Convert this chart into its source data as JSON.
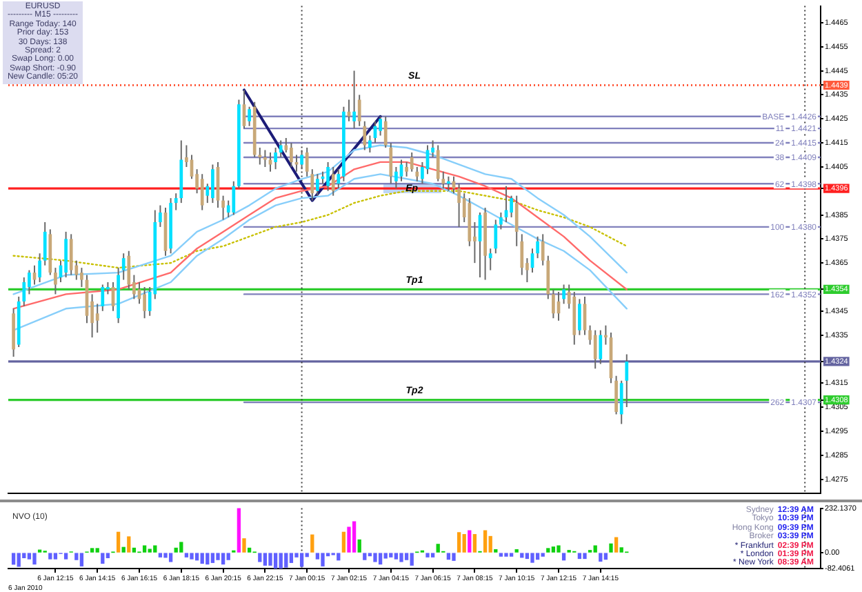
{
  "chart_data": [
    {
      "type": "candlestick",
      "x": [
        "2010-01-06T10:15",
        "2010-01-06T10:30",
        "2010-01-06T10:45",
        "2010-01-06T11:00",
        "2010-01-06T11:15",
        "2010-01-06T11:30",
        "2010-01-06T11:45",
        "2010-01-06T12:00",
        "2010-01-06T12:15",
        "2010-01-06T12:30",
        "2010-01-06T12:45",
        "2010-01-06T13:00",
        "2010-01-06T13:15",
        "2010-01-06T13:30",
        "2010-01-06T13:45",
        "2010-01-06T14:00",
        "2010-01-06T14:15",
        "2010-01-06T14:30",
        "2010-01-06T14:45",
        "2010-01-06T15:00",
        "2010-01-06T15:15",
        "2010-01-06T15:30",
        "2010-01-06T15:45",
        "2010-01-06T16:00",
        "2010-01-06T16:15",
        "2010-01-06T16:30",
        "2010-01-06T16:45",
        "2010-01-06T17:00",
        "2010-01-06T17:15",
        "2010-01-06T17:30",
        "2010-01-06T17:45",
        "2010-01-06T18:00",
        "2010-01-06T18:15",
        "2010-01-06T18:30",
        "2010-01-06T18:45",
        "2010-01-06T19:00",
        "2010-01-06T19:15",
        "2010-01-06T19:30",
        "2010-01-06T19:45",
        "2010-01-06T20:00",
        "2010-01-06T20:15",
        "2010-01-06T20:30",
        "2010-01-06T20:45",
        "2010-01-06T21:00",
        "2010-01-06T21:15",
        "2010-01-06T21:30",
        "2010-01-06T21:45",
        "2010-01-06T22:00",
        "2010-01-06T22:15",
        "2010-01-06T22:30",
        "2010-01-06T22:45",
        "2010-01-06T23:00",
        "2010-01-06T23:15",
        "2010-01-06T23:30",
        "2010-01-06T23:45",
        "2010-01-07T00:00",
        "2010-01-07T00:15",
        "2010-01-07T00:30",
        "2010-01-07T00:45",
        "2010-01-07T01:00",
        "2010-01-07T01:15",
        "2010-01-07T01:30",
        "2010-01-07T01:45",
        "2010-01-07T02:00",
        "2010-01-07T02:15",
        "2010-01-07T02:30",
        "2010-01-07T02:45",
        "2010-01-07T03:00",
        "2010-01-07T03:15",
        "2010-01-07T03:30",
        "2010-01-07T03:45",
        "2010-01-07T04:00",
        "2010-01-07T04:15",
        "2010-01-07T04:30",
        "2010-01-07T04:45",
        "2010-01-07T05:00",
        "2010-01-07T05:15",
        "2010-01-07T05:30",
        "2010-01-07T05:45",
        "2010-01-07T06:00",
        "2010-01-07T06:15",
        "2010-01-07T06:30",
        "2010-01-07T06:45",
        "2010-01-07T07:00",
        "2010-01-07T07:15",
        "2010-01-07T07:30",
        "2010-01-07T07:45",
        "2010-01-07T08:00",
        "2010-01-07T08:15",
        "2010-01-07T08:30",
        "2010-01-07T08:45",
        "2010-01-07T09:00",
        "2010-01-07T09:15",
        "2010-01-07T09:30",
        "2010-01-07T09:45",
        "2010-01-07T10:00",
        "2010-01-07T10:15",
        "2010-01-07T10:30",
        "2010-01-07T10:45",
        "2010-01-07T11:00",
        "2010-01-07T11:15",
        "2010-01-07T11:30",
        "2010-01-07T11:45",
        "2010-01-07T12:00",
        "2010-01-07T12:15",
        "2010-01-07T12:30",
        "2010-01-07T12:45",
        "2010-01-07T13:00",
        "2010-01-07T13:15",
        "2010-01-07T13:30",
        "2010-01-07T13:45",
        "2010-01-07T14:00",
        "2010-01-07T14:15",
        "2010-01-07T14:30",
        "2010-01-07T14:45",
        "2010-01-07T15:00",
        "2010-01-07T15:15",
        "2010-01-07T15:30"
      ],
      "ohlc": [
        [
          1.4344,
          1.4346,
          1.4326,
          1.4329
        ],
        [
          1.4331,
          1.4351,
          1.433,
          1.4349
        ],
        [
          1.4349,
          1.4359,
          1.4347,
          1.4357
        ],
        [
          1.4355,
          1.4362,
          1.4352,
          1.4361
        ],
        [
          1.4361,
          1.4364,
          1.4356,
          1.4358
        ],
        [
          1.4359,
          1.4369,
          1.4357,
          1.4366
        ],
        [
          1.4366,
          1.4382,
          1.4364,
          1.4378
        ],
        [
          1.4377,
          1.4379,
          1.436,
          1.4361
        ],
        [
          1.4361,
          1.4363,
          1.4352,
          1.4356
        ],
        [
          1.4359,
          1.4366,
          1.4357,
          1.4364
        ],
        [
          1.4361,
          1.4378,
          1.4359,
          1.4375
        ],
        [
          1.4375,
          1.4377,
          1.436,
          1.4362
        ],
        [
          1.4364,
          1.4366,
          1.4358,
          1.436
        ],
        [
          1.4361,
          1.4363,
          1.4355,
          1.4358
        ],
        [
          1.4358,
          1.436,
          1.434,
          1.4343
        ],
        [
          1.4349,
          1.4352,
          1.4334,
          1.434
        ],
        [
          1.4344,
          1.4348,
          1.4336,
          1.4341
        ],
        [
          1.4347,
          1.4356,
          1.4345,
          1.4355
        ],
        [
          1.4354,
          1.4357,
          1.4352,
          1.4355
        ],
        [
          1.4355,
          1.4357,
          1.4345,
          1.4347
        ],
        [
          1.4342,
          1.4363,
          1.434,
          1.436
        ],
        [
          1.4362,
          1.4369,
          1.4358,
          1.4367
        ],
        [
          1.4368,
          1.437,
          1.4354,
          1.4356
        ],
        [
          1.4357,
          1.436,
          1.435,
          1.4352
        ],
        [
          1.4354,
          1.4357,
          1.4348,
          1.435
        ],
        [
          1.4352,
          1.4355,
          1.4342,
          1.4345
        ],
        [
          1.4345,
          1.4355,
          1.4343,
          1.4353
        ],
        [
          1.4352,
          1.4387,
          1.435,
          1.4382
        ],
        [
          1.4382,
          1.4389,
          1.438,
          1.4386
        ],
        [
          1.4386,
          1.4388,
          1.4368,
          1.437
        ],
        [
          1.4371,
          1.4392,
          1.4369,
          1.439
        ],
        [
          1.439,
          1.4394,
          1.4387,
          1.4392
        ],
        [
          1.4392,
          1.4416,
          1.439,
          1.4408
        ],
        [
          1.4409,
          1.4414,
          1.4405,
          1.4407
        ],
        [
          1.4408,
          1.441,
          1.44,
          1.4401
        ],
        [
          1.4402,
          1.4404,
          1.4394,
          1.4396
        ],
        [
          1.44,
          1.4402,
          1.4387,
          1.4389
        ],
        [
          1.4393,
          1.4398,
          1.439,
          1.4397
        ],
        [
          1.4392,
          1.4406,
          1.439,
          1.4404
        ],
        [
          1.4405,
          1.4407,
          1.4388,
          1.4391
        ],
        [
          1.4391,
          1.4393,
          1.4383,
          1.4388
        ],
        [
          1.4386,
          1.4391,
          1.4384,
          1.4389
        ],
        [
          1.4386,
          1.4399,
          1.4385,
          1.4397
        ],
        [
          1.4397,
          1.4433,
          1.4396,
          1.4431
        ],
        [
          1.4431,
          1.4437,
          1.4421,
          1.4422
        ],
        [
          1.4424,
          1.443,
          1.4422,
          1.4429
        ],
        [
          1.443,
          1.4432,
          1.4409,
          1.441
        ],
        [
          1.441,
          1.4413,
          1.4406,
          1.4409
        ],
        [
          1.4409,
          1.4412,
          1.4405,
          1.4408
        ],
        [
          1.4408,
          1.4411,
          1.4403,
          1.4406
        ],
        [
          1.4407,
          1.4413,
          1.4404,
          1.4411
        ],
        [
          1.4411,
          1.4416,
          1.4409,
          1.4414
        ],
        [
          1.4414,
          1.4417,
          1.4411,
          1.4412
        ],
        [
          1.4413,
          1.4415,
          1.4405,
          1.4407
        ],
        [
          1.4407,
          1.441,
          1.4403,
          1.4406
        ],
        [
          1.4406,
          1.4412,
          1.4404,
          1.441
        ],
        [
          1.4411,
          1.4413,
          1.4401,
          1.4403
        ],
        [
          1.4402,
          1.4404,
          1.4391,
          1.4394
        ],
        [
          1.4395,
          1.4402,
          1.4393,
          1.44
        ],
        [
          1.44,
          1.4403,
          1.4398,
          1.4401
        ],
        [
          1.4397,
          1.4407,
          1.4395,
          1.4405
        ],
        [
          1.4402,
          1.4405,
          1.4393,
          1.4395
        ],
        [
          1.4398,
          1.4404,
          1.4396,
          1.4402
        ],
        [
          1.4401,
          1.443,
          1.4399,
          1.4428
        ],
        [
          1.4428,
          1.4433,
          1.4424,
          1.4426
        ],
        [
          1.4424,
          1.4445,
          1.4421,
          1.4428
        ],
        [
          1.4433,
          1.4435,
          1.4422,
          1.4424
        ],
        [
          1.4422,
          1.4424,
          1.4412,
          1.4414
        ],
        [
          1.4413,
          1.4418,
          1.4411,
          1.4416
        ],
        [
          1.4417,
          1.4424,
          1.4415,
          1.4422
        ],
        [
          1.442,
          1.4426,
          1.4418,
          1.4425
        ],
        [
          1.4424,
          1.4426,
          1.4413,
          1.4414
        ],
        [
          1.4413,
          1.4415,
          1.4398,
          1.4401
        ],
        [
          1.4399,
          1.4405,
          1.4396,
          1.4403
        ],
        [
          1.4401,
          1.4408,
          1.4399,
          1.4406
        ],
        [
          1.4405,
          1.4407,
          1.4401,
          1.4403
        ],
        [
          1.4409,
          1.4411,
          1.4403,
          1.4404
        ],
        [
          1.4403,
          1.4405,
          1.4399,
          1.4401
        ],
        [
          1.44,
          1.4407,
          1.4398,
          1.4405
        ],
        [
          1.4404,
          1.4414,
          1.4402,
          1.4412
        ],
        [
          1.4411,
          1.4416,
          1.4409,
          1.4413
        ],
        [
          1.4412,
          1.4414,
          1.4399,
          1.44
        ],
        [
          1.44,
          1.4403,
          1.4396,
          1.4398
        ],
        [
          1.4398,
          1.4401,
          1.4395,
          1.4399
        ],
        [
          1.4399,
          1.4401,
          1.4394,
          1.4396
        ],
        [
          1.4396,
          1.4398,
          1.438,
          1.439
        ],
        [
          1.4392,
          1.4394,
          1.4382,
          1.4384
        ],
        [
          1.439,
          1.4392,
          1.4372,
          1.4374
        ],
        [
          1.4376,
          1.4382,
          1.4365,
          1.4374
        ],
        [
          1.4374,
          1.4386,
          1.4359,
          1.4385
        ],
        [
          1.4386,
          1.4388,
          1.4358,
          1.4368
        ],
        [
          1.4367,
          1.4371,
          1.4362,
          1.4369
        ],
        [
          1.4371,
          1.4383,
          1.4369,
          1.4381
        ],
        [
          1.4381,
          1.4386,
          1.4379,
          1.4384
        ],
        [
          1.4384,
          1.4397,
          1.4382,
          1.4387
        ],
        [
          1.4386,
          1.4393,
          1.4384,
          1.4392
        ],
        [
          1.439,
          1.4393,
          1.4372,
          1.4378
        ],
        [
          1.4374,
          1.4377,
          1.436,
          1.4363
        ],
        [
          1.4365,
          1.4367,
          1.4357,
          1.4362
        ],
        [
          1.4363,
          1.4371,
          1.4361,
          1.4369
        ],
        [
          1.4369,
          1.4376,
          1.4367,
          1.4374
        ],
        [
          1.4374,
          1.4377,
          1.4364,
          1.4366
        ],
        [
          1.4366,
          1.4368,
          1.435,
          1.4352
        ],
        [
          1.4352,
          1.4354,
          1.4342,
          1.4344
        ],
        [
          1.4349,
          1.4353,
          1.4341,
          1.4344
        ],
        [
          1.435,
          1.4356,
          1.4348,
          1.4354
        ],
        [
          1.4353,
          1.4356,
          1.4346,
          1.4348
        ],
        [
          1.4351,
          1.4353,
          1.4331,
          1.4335
        ],
        [
          1.4337,
          1.435,
          1.4335,
          1.4348
        ],
        [
          1.4348,
          1.4351,
          1.4335,
          1.4337
        ],
        [
          1.4337,
          1.4339,
          1.4331,
          1.4333
        ],
        [
          1.4335,
          1.4337,
          1.4321,
          1.4325
        ],
        [
          1.4325,
          1.4337,
          1.4323,
          1.4335
        ],
        [
          1.4335,
          1.4339,
          1.4331,
          1.4334
        ],
        [
          1.4334,
          1.4336,
          1.4315,
          1.4317
        ],
        [
          1.4316,
          1.4318,
          1.4302,
          1.4303
        ],
        [
          1.4302,
          1.4316,
          1.4298,
          1.4315
        ],
        [
          1.4316,
          1.4327,
          1.4305,
          1.4324
        ]
      ],
      "colors": [
        "#c8a878",
        "#00e0ff",
        "#00e0ff",
        "#00e0ff",
        "#c8a878",
        "#00e0ff",
        "#00e0ff",
        "#c8a878",
        "#c8a878",
        "#00e0ff",
        "#00e0ff",
        "#c8a878",
        "#c8a878",
        "#c8a878",
        "#c8a878",
        "#c8a878",
        "#c8a878",
        "#00e0ff",
        "#00e0ff",
        "#c8a878",
        "#00e0ff",
        "#00e0ff",
        "#c8a878",
        "#c8a878",
        "#c8a878",
        "#c8a878",
        "#00e0ff",
        "#00e0ff",
        "#00e0ff",
        "#c8a878",
        "#00e0ff",
        "#00e0ff",
        "#00e0ff",
        "#c8a878",
        "#c8a878",
        "#c8a878",
        "#c8a878",
        "#00e0ff",
        "#00e0ff",
        "#c8a878",
        "#c8a878",
        "#00e0ff",
        "#00e0ff",
        "#00e0ff",
        "#c8a878",
        "#00e0ff",
        "#c8a878",
        "#c8a878",
        "#c8a878",
        "#c8a878",
        "#00e0ff",
        "#00e0ff",
        "#c8a878",
        "#c8a878",
        "#c8a878",
        "#00e0ff",
        "#c8a878",
        "#c8a878",
        "#00e0ff",
        "#00e0ff",
        "#00e0ff",
        "#c8a878",
        "#00e0ff",
        "#00e0ff",
        "#c8a878",
        "#00e0ff",
        "#c8a878",
        "#c8a878",
        "#00e0ff",
        "#00e0ff",
        "#00e0ff",
        "#c8a878",
        "#c8a878",
        "#00e0ff",
        "#00e0ff",
        "#c8a878",
        "#c8a878",
        "#c8a878",
        "#00e0ff",
        "#00e0ff",
        "#00e0ff",
        "#c8a878",
        "#c8a878",
        "#00e0ff",
        "#c8a878",
        "#c8a878",
        "#c8a878",
        "#c8a878",
        "#c8a878",
        "#00e0ff",
        "#c8a878",
        "#00e0ff",
        "#00e0ff",
        "#00e0ff",
        "#00e0ff",
        "#00e0ff",
        "#c8a878",
        "#c8a878",
        "#c8a878",
        "#00e0ff",
        "#00e0ff",
        "#c8a878",
        "#c8a878",
        "#c8a878",
        "#c8a878",
        "#00e0ff",
        "#c8a878",
        "#c8a878",
        "#00e0ff",
        "#c8a878",
        "#c8a878",
        "#c8a878",
        "#00e0ff",
        "#c8a878",
        "#c8a878",
        "#c8a878",
        "#00e0ff",
        "#00e0ff"
      ],
      "series": [
        {
          "type": "line",
          "color": "#87cefa",
          "x": [
            "2010-01-06T10:15",
            "2010-01-06T12:45",
            "2010-01-06T15:15",
            "2010-01-06T17:45",
            "2010-01-06T19:00",
            "2010-01-06T20:15",
            "2010-01-06T21:30",
            "2010-01-06T22:45",
            "2010-01-07T00:00",
            "2010-01-07T01:15",
            "2010-01-07T02:30",
            "2010-01-07T03:45",
            "2010-01-07T05:00",
            "2010-01-07T06:15",
            "2010-01-07T07:30",
            "2010-01-07T08:45",
            "2010-01-07T10:00",
            "2010-01-07T11:15",
            "2010-01-07T12:30",
            "2010-01-07T13:45",
            "2010-01-07T15:30"
          ],
          "values": [
            1.4352,
            1.436,
            1.4361,
            1.4368,
            1.4378,
            1.4383,
            1.4389,
            1.4396,
            1.44,
            1.4403,
            1.4412,
            1.4414,
            1.4413,
            1.441,
            1.4406,
            1.4402,
            1.44,
            1.4392,
            1.4385,
            1.4376,
            1.4361
          ]
        },
        {
          "type": "line",
          "color": "#ff6a6a",
          "x": [
            "2010-01-06T10:15",
            "2010-01-06T12:45",
            "2010-01-06T15:15",
            "2010-01-06T17:45",
            "2010-01-06T19:00",
            "2010-01-06T20:15",
            "2010-01-06T21:30",
            "2010-01-06T22:45",
            "2010-01-07T00:00",
            "2010-01-07T01:15",
            "2010-01-07T02:30",
            "2010-01-07T03:45",
            "2010-01-07T05:00",
            "2010-01-07T06:15",
            "2010-01-07T07:30",
            "2010-01-07T08:45",
            "2010-01-07T10:00",
            "2010-01-07T11:15",
            "2010-01-07T12:30",
            "2010-01-07T13:45",
            "2010-01-07T15:30"
          ],
          "values": [
            1.4346,
            1.4352,
            1.4354,
            1.4361,
            1.4371,
            1.4378,
            1.4385,
            1.4392,
            1.4395,
            1.4397,
            1.4404,
            1.4407,
            1.4407,
            1.4404,
            1.4401,
            1.4397,
            1.4392,
            1.4384,
            1.4376,
            1.4366,
            1.4354
          ]
        },
        {
          "type": "line",
          "color": "#87cefa",
          "x": [
            "2010-01-06T10:15",
            "2010-01-06T12:45",
            "2010-01-06T15:15",
            "2010-01-06T17:45",
            "2010-01-06T19:00",
            "2010-01-06T20:15",
            "2010-01-06T21:30",
            "2010-01-06T22:45",
            "2010-01-07T00:00",
            "2010-01-07T01:15",
            "2010-01-07T02:30",
            "2010-01-07T03:45",
            "2010-01-07T05:00",
            "2010-01-07T06:15",
            "2010-01-07T07:30",
            "2010-01-07T08:45",
            "2010-01-07T10:00",
            "2010-01-07T11:15",
            "2010-01-07T12:30",
            "2010-01-07T13:45",
            "2010-01-07T15:30"
          ],
          "values": [
            1.4337,
            1.4346,
            1.4348,
            1.4357,
            1.4368,
            1.4375,
            1.4383,
            1.4389,
            1.4392,
            1.4393,
            1.44,
            1.4402,
            1.44,
            1.4398,
            1.4393,
            1.4387,
            1.4381,
            1.4375,
            1.437,
            1.4362,
            1.4346
          ]
        },
        {
          "type": "line",
          "color": "#c8c000",
          "line_style": "dotted",
          "x": [
            "2010-01-06T10:15",
            "2010-01-06T12:45",
            "2010-01-06T15:15",
            "2010-01-06T17:45",
            "2010-01-06T19:00",
            "2010-01-06T20:15",
            "2010-01-06T21:30",
            "2010-01-06T22:45",
            "2010-01-07T00:00",
            "2010-01-07T01:15",
            "2010-01-07T02:30",
            "2010-01-07T03:45",
            "2010-01-07T05:00",
            "2010-01-07T06:15",
            "2010-01-07T07:30",
            "2010-01-07T08:45",
            "2010-01-07T10:00",
            "2010-01-07T11:15",
            "2010-01-07T12:30",
            "2010-01-07T13:45",
            "2010-01-07T15:30"
          ],
          "values": [
            1.4368,
            1.4366,
            1.4363,
            1.4365,
            1.437,
            1.4372,
            1.4376,
            1.438,
            1.4382,
            1.4385,
            1.439,
            1.4393,
            1.4395,
            1.4395,
            1.4395,
            1.4393,
            1.4391,
            1.4387,
            1.4384,
            1.438,
            1.4372
          ]
        },
        {
          "type": "line",
          "color": "#1c1c78",
          "x": [
            "2010-01-06T21:15",
            "2010-01-07T00:30",
            "2010-01-07T03:45"
          ],
          "values": [
            1.4437,
            1.4391,
            1.4426
          ]
        },
        {
          "type": "line",
          "name": "BASE",
          "color": "#8080bc",
          "x": [
            "2010-01-06T21:15",
            "2010-01-08T00:45"
          ],
          "values": [
            1.4426,
            1.4426
          ],
          "value_labels": [
            null,
            "1.4426"
          ]
        },
        {
          "type": "line",
          "name": "11",
          "color": "#8080bc",
          "x": [
            "2010-01-06T21:15",
            "2010-01-08T00:45"
          ],
          "values": [
            1.4421,
            1.4421
          ],
          "value_labels": [
            null,
            "1.4421"
          ]
        },
        {
          "type": "line",
          "name": "24",
          "color": "#8080bc",
          "x": [
            "2010-01-06T21:15",
            "2010-01-08T00:45"
          ],
          "values": [
            1.4415,
            1.4415
          ],
          "value_labels": [
            null,
            "1.4415"
          ]
        },
        {
          "type": "line",
          "name": "38",
          "color": "#8080bc",
          "x": [
            "2010-01-06T21:15",
            "2010-01-08T00:45"
          ],
          "values": [
            1.4409,
            1.4409
          ],
          "value_labels": [
            null,
            "1.4409"
          ]
        },
        {
          "type": "line",
          "name": "62",
          "color": "#8080bc",
          "x": [
            "2010-01-06T21:15",
            "2010-01-08T00:45"
          ],
          "values": [
            1.4398,
            1.4398
          ],
          "value_labels": [
            null,
            "1.4398"
          ]
        },
        {
          "type": "line",
          "name": "100",
          "color": "#8080bc",
          "x": [
            "2010-01-06T21:15",
            "2010-01-08T00:45"
          ],
          "values": [
            1.438,
            1.438
          ],
          "value_labels": [
            null,
            "1.4380"
          ]
        },
        {
          "type": "line",
          "name": "162",
          "color": "#8080bc",
          "x": [
            "2010-01-06T21:15",
            "2010-01-08T00:45"
          ],
          "values": [
            1.4352,
            1.4352
          ],
          "value_labels": [
            null,
            "1.4352"
          ]
        },
        {
          "type": "line",
          "name": "262",
          "color": "#8080bc",
          "x": [
            "2010-01-06T21:15",
            "2010-01-08T00:45"
          ],
          "values": [
            1.4307,
            1.4307
          ],
          "value_labels": [
            null,
            "1.4307"
          ]
        }
      ],
      "xlim": [
        "2010-01-06T10:00",
        "2010-01-08T00:45"
      ],
      "ylim": [
        1.4269,
        1.4472
      ],
      "yticks": [
        1.4275,
        1.4285,
        1.4295,
        1.4305,
        1.4308,
        1.4315,
        1.4324,
        1.4335,
        1.4345,
        1.4354,
        1.4365,
        1.4375,
        1.4385,
        1.4396,
        1.4405,
        1.4415,
        1.4425,
        1.4435,
        1.4439,
        1.4445,
        1.4455,
        1.4465
      ],
      "tick_labels": "y",
      "ref_lines": [
        {
          "axis": "y",
          "value": 1.4439,
          "label": "SL",
          "color": "#ff5a3c",
          "line_style": "dotted"
        },
        {
          "axis": "y",
          "value": 1.4396,
          "color": "#ff2020"
        },
        {
          "axis": "y",
          "value": 1.4354,
          "label": "Tp1",
          "color": "#2ecc2e"
        },
        {
          "axis": "y",
          "value": 1.4324,
          "color": "#6464a0"
        },
        {
          "axis": "y",
          "value": 1.4308,
          "label": "Tp2",
          "color": "#2ecc2e"
        },
        {
          "axis": "x",
          "value": "2010-01-07T00:00",
          "color": "#404040",
          "line_style": "dotted"
        },
        {
          "axis": "x",
          "value": "2010-01-08T00:00",
          "color": "#404040",
          "line_style": "dotted"
        }
      ],
      "annotations": [
        {
          "text": "Ep",
          "x": "2010-01-07T05:15",
          "y": 1.4396
        }
      ]
    },
    {
      "type": "bar",
      "title": "NVO (10)",
      "xlabel": "6 Jan 2010",
      "x": [
        "2010-01-06T10:15",
        "2010-01-06T10:30",
        "2010-01-06T10:45",
        "2010-01-06T11:00",
        "2010-01-06T11:15",
        "2010-01-06T11:30",
        "2010-01-06T11:45",
        "2010-01-06T12:00",
        "2010-01-06T12:15",
        "2010-01-06T12:30",
        "2010-01-06T12:45",
        "2010-01-06T13:00",
        "2010-01-06T13:15",
        "2010-01-06T13:30",
        "2010-01-06T13:45",
        "2010-01-06T14:00",
        "2010-01-06T14:15",
        "2010-01-06T14:30",
        "2010-01-06T14:45",
        "2010-01-06T15:00",
        "2010-01-06T15:15",
        "2010-01-06T15:30",
        "2010-01-06T15:45",
        "2010-01-06T16:00",
        "2010-01-06T16:15",
        "2010-01-06T16:30",
        "2010-01-06T16:45",
        "2010-01-06T17:00",
        "2010-01-06T17:15",
        "2010-01-06T17:30",
        "2010-01-06T17:45",
        "2010-01-06T18:00",
        "2010-01-06T18:15",
        "2010-01-06T18:30",
        "2010-01-06T18:45",
        "2010-01-06T19:00",
        "2010-01-06T19:15",
        "2010-01-06T19:30",
        "2010-01-06T19:45",
        "2010-01-06T20:00",
        "2010-01-06T20:15",
        "2010-01-06T20:30",
        "2010-01-06T20:45",
        "2010-01-06T21:00",
        "2010-01-06T21:15",
        "2010-01-06T21:30",
        "2010-01-06T21:45",
        "2010-01-06T22:00",
        "2010-01-06T22:15",
        "2010-01-06T22:30",
        "2010-01-06T22:45",
        "2010-01-06T23:00",
        "2010-01-06T23:15",
        "2010-01-06T23:30",
        "2010-01-06T23:45",
        "2010-01-07T00:00",
        "2010-01-07T00:15",
        "2010-01-07T00:30",
        "2010-01-07T00:45",
        "2010-01-07T01:00",
        "2010-01-07T01:15",
        "2010-01-07T01:30",
        "2010-01-07T01:45",
        "2010-01-07T02:00",
        "2010-01-07T02:15",
        "2010-01-07T02:30",
        "2010-01-07T02:45",
        "2010-01-07T03:00",
        "2010-01-07T03:15",
        "2010-01-07T03:30",
        "2010-01-07T03:45",
        "2010-01-07T04:00",
        "2010-01-07T04:15",
        "2010-01-07T04:30",
        "2010-01-07T04:45",
        "2010-01-07T05:00",
        "2010-01-07T05:15",
        "2010-01-07T05:30",
        "2010-01-07T05:45",
        "2010-01-07T06:00",
        "2010-01-07T06:15",
        "2010-01-07T06:30",
        "2010-01-07T06:45",
        "2010-01-07T07:00",
        "2010-01-07T07:15",
        "2010-01-07T07:30",
        "2010-01-07T07:45",
        "2010-01-07T08:00",
        "2010-01-07T08:15",
        "2010-01-07T08:30",
        "2010-01-07T08:45",
        "2010-01-07T09:00",
        "2010-01-07T09:15",
        "2010-01-07T09:30",
        "2010-01-07T09:45",
        "2010-01-07T10:00",
        "2010-01-07T10:15",
        "2010-01-07T10:30",
        "2010-01-07T10:45",
        "2010-01-07T11:00",
        "2010-01-07T11:15",
        "2010-01-07T11:30",
        "2010-01-07T11:45",
        "2010-01-07T12:00",
        "2010-01-07T12:15",
        "2010-01-07T12:30",
        "2010-01-07T12:45",
        "2010-01-07T13:00",
        "2010-01-07T13:15",
        "2010-01-07T13:30",
        "2010-01-07T13:45",
        "2010-01-07T14:00",
        "2010-01-07T14:15",
        "2010-01-07T14:30",
        "2010-01-07T14:45",
        "2010-01-07T15:00",
        "2010-01-07T15:15",
        "2010-01-07T15:30"
      ],
      "values": [
        -60,
        -71,
        -26,
        -32,
        -59,
        14,
        8,
        -32,
        -32,
        -4,
        -32,
        4,
        -36,
        -69,
        3,
        22,
        22,
        -55,
        -26,
        2,
        107,
        28,
        83,
        24,
        2,
        36,
        18,
        36,
        -22,
        -24,
        -46,
        24,
        54,
        -22,
        -32,
        -38,
        -55,
        -59,
        -51,
        -36,
        -59,
        -36,
        10,
        232,
        73,
        24,
        2,
        -46,
        -65,
        -65,
        -82,
        -81,
        -75,
        -51,
        -22,
        -71,
        -20,
        93,
        -32,
        -69,
        -16,
        -10,
        -38,
        107,
        133,
        162,
        67,
        -36,
        -16,
        -46,
        -59,
        -28,
        -22,
        -32,
        -46,
        -36,
        -65,
        2,
        10,
        -22,
        -22,
        44,
        6,
        -34,
        -40,
        105,
        95,
        115,
        95,
        6,
        115,
        85,
        16,
        -18,
        -18,
        -18,
        16,
        -24,
        -30,
        -50,
        -34,
        -18,
        22,
        30,
        36,
        -38,
        12,
        6,
        -30,
        -30,
        12,
        36,
        -44,
        -34,
        46,
        79,
        26,
        2
      ],
      "colors": [
        "#6060ff",
        "#6060ff",
        "#6060ff",
        "#6060ff",
        "#6060ff",
        "#10d010",
        "#10d010",
        "#6060ff",
        "#6060ff",
        "#6060ff",
        "#6060ff",
        "#10d010",
        "#6060ff",
        "#6060ff",
        "#10d010",
        "#10d010",
        "#10d010",
        "#6060ff",
        "#6060ff",
        "#10d010",
        "#ffa010",
        "#10d010",
        "#ffa010",
        "#10d010",
        "#10d010",
        "#10d010",
        "#10d010",
        "#10d010",
        "#6060ff",
        "#6060ff",
        "#6060ff",
        "#10d010",
        "#10d010",
        "#6060ff",
        "#6060ff",
        "#6060ff",
        "#6060ff",
        "#6060ff",
        "#6060ff",
        "#6060ff",
        "#6060ff",
        "#6060ff",
        "#10d010",
        "#ff10ff",
        "#ffa010",
        "#10d010",
        "#10d010",
        "#6060ff",
        "#6060ff",
        "#6060ff",
        "#6060ff",
        "#6060ff",
        "#6060ff",
        "#6060ff",
        "#6060ff",
        "#6060ff",
        "#6060ff",
        "#ffa010",
        "#6060ff",
        "#6060ff",
        "#6060ff",
        "#6060ff",
        "#6060ff",
        "#ffa010",
        "#ff10ff",
        "#ff10ff",
        "#10d010",
        "#6060ff",
        "#6060ff",
        "#6060ff",
        "#6060ff",
        "#6060ff",
        "#6060ff",
        "#6060ff",
        "#6060ff",
        "#6060ff",
        "#6060ff",
        "#10d010",
        "#10d010",
        "#6060ff",
        "#6060ff",
        "#10d010",
        "#10d010",
        "#6060ff",
        "#6060ff",
        "#ffa010",
        "#ffa010",
        "#ff10ff",
        "#ffa010",
        "#10d010",
        "#ffa010",
        "#ffa010",
        "#10d010",
        "#6060ff",
        "#6060ff",
        "#6060ff",
        "#10d010",
        "#6060ff",
        "#6060ff",
        "#6060ff",
        "#6060ff",
        "#6060ff",
        "#10d010",
        "#10d010",
        "#10d010",
        "#6060ff",
        "#10d010",
        "#10d010",
        "#6060ff",
        "#6060ff",
        "#10d010",
        "#10d010",
        "#6060ff",
        "#6060ff",
        "#10d010",
        "#ffa010",
        "#10d010",
        "#10d010"
      ],
      "xlim": [
        "2010-01-06T10:00",
        "2010-01-08T00:45"
      ],
      "xticks": [
        {
          "value": "2010-01-06T12:15",
          "label": "6 Jan 12:15"
        },
        {
          "value": "2010-01-06T14:15",
          "label": "6 Jan 14:15"
        },
        {
          "value": "2010-01-06T16:15",
          "label": "6 Jan 16:15"
        },
        {
          "value": "2010-01-06T18:15",
          "label": "6 Jan 18:15"
        },
        {
          "value": "2010-01-06T20:15",
          "label": "6 Jan 20:15"
        },
        {
          "value": "2010-01-06T22:15",
          "label": "6 Jan 22:15"
        },
        {
          "value": "2010-01-07T00:15",
          "label": "7 Jan 00:15"
        },
        {
          "value": "2010-01-07T02:15",
          "label": "7 Jan 02:15"
        },
        {
          "value": "2010-01-07T04:15",
          "label": "7 Jan 04:15"
        },
        {
          "value": "2010-01-07T06:15",
          "label": "7 Jan 06:15"
        },
        {
          "value": "2010-01-07T08:15",
          "label": "7 Jan 08:15"
        },
        {
          "value": "2010-01-07T10:15",
          "label": "7 Jan 10:15"
        },
        {
          "value": "2010-01-07T12:15",
          "label": "7 Jan 12:15"
        },
        {
          "value": "2010-01-07T14:15",
          "label": "7 Jan 14:15"
        }
      ],
      "ylim": [
        -82.4061,
        232.137
      ],
      "yticks": [
        {
          "value": 232.137,
          "label": "232.1370"
        },
        {
          "value": 0,
          "label": "0.00"
        },
        {
          "value": -82.4061,
          "label": "-82.4061"
        }
      ],
      "ref_lines": [
        {
          "axis": "x",
          "value": "2010-01-07T00:00",
          "color": "#404040",
          "line_style": "dotted"
        },
        {
          "axis": "x",
          "value": "2010-01-08T00:00",
          "color": "#404040",
          "line_style": "dotted"
        }
      ]
    },
    {
      "type": "other",
      "title": "EURUSD",
      "subtitle": "--------- M15 ---------",
      "annotations": [
        "Range Today: 140",
        "Prior day: 153",
        "30 Days: 138",
        "Spread: 2",
        "Swap Long: 0.00",
        "Swap Short: -0.90",
        "New Candle: 05:20"
      ]
    },
    {
      "type": "other",
      "categories": [
        "Sydney",
        "Tokyo",
        "Hong Kong",
        "Broker",
        "* Frankfurt",
        "* London",
        "* New York"
      ],
      "value_labels": [
        "12:39 AM",
        "10:39 PM",
        "09:39 PM",
        "03:39 PM",
        "02:39 PM",
        "01:39 PM",
        "08:39 AM"
      ],
      "colors": [
        "#2424f0",
        "#2424f0",
        "#2424f0",
        "#2424f0",
        "#f01848",
        "#f01848",
        "#f01848"
      ]
    }
  ]
}
